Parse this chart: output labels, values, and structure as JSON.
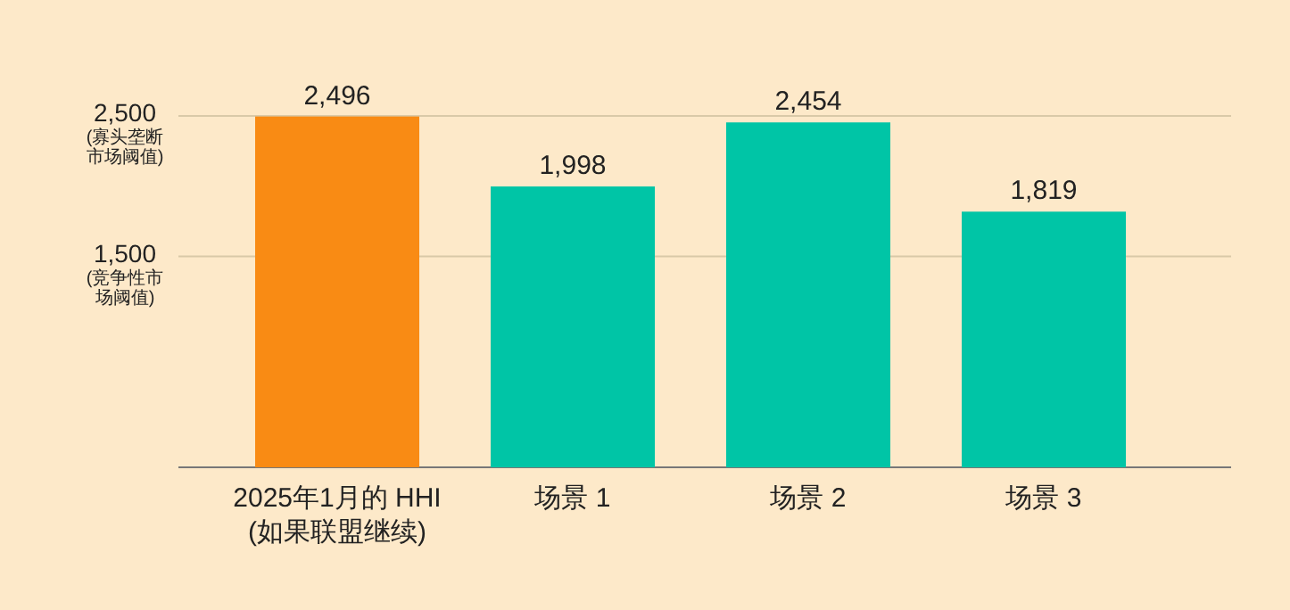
{
  "chart_data": {
    "type": "bar",
    "categories": [
      "2025年1月的 HHI\n(如果联盟继续)",
      "场景 1",
      "场景 2",
      "场景 3"
    ],
    "values": [
      2496,
      1998,
      2454,
      1819
    ],
    "colors": [
      "#f98b14",
      "#00c5a6",
      "#00c5a6",
      "#00c5a6"
    ],
    "value_labels": [
      "2,496",
      "1,998",
      "2,454",
      "1,819"
    ],
    "ylim": [
      0,
      2500
    ],
    "yticks": [
      {
        "value": 1500,
        "label": "1,500\n(竞争性市场阈值)"
      },
      {
        "value": 2500,
        "label": "2,500\n(寡头垄断市场阈值)"
      }
    ],
    "ref_lines": [
      {
        "axis": "y",
        "value": 1500,
        "color": "#d9c9a8"
      },
      {
        "axis": "y",
        "value": 2500,
        "color": "#d9c9a8"
      }
    ]
  }
}
